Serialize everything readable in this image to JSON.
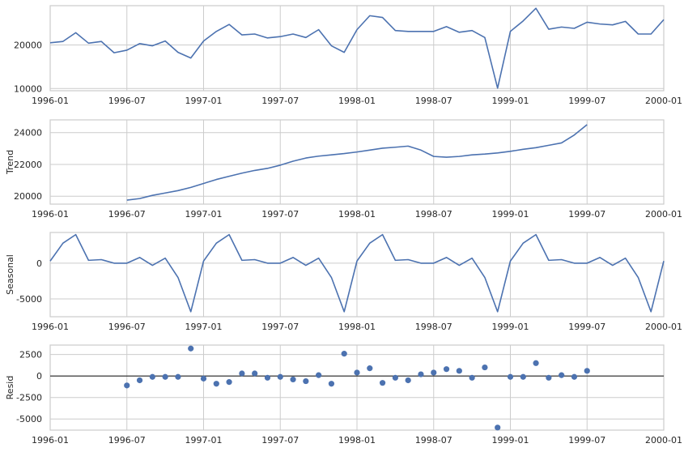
{
  "chart_data": [
    {
      "type": "line",
      "panel": "observed",
      "ylabel": "",
      "ylim": [
        9500,
        29000
      ],
      "yticks": [
        10000,
        20000
      ],
      "x_start": "1996-01",
      "x_freq": "monthly",
      "xticks": [
        "1996-01",
        "1996-07",
        "1997-01",
        "1997-07",
        "1998-01",
        "1998-07",
        "1999-01",
        "1999-07",
        "2000-01"
      ],
      "grid": true,
      "color": "#4c72b0",
      "series": [
        {
          "values": [
            20500,
            20800,
            22800,
            20400,
            20800,
            18200,
            18800,
            20300,
            19800,
            20900,
            18300,
            17000,
            20900,
            23100,
            24700,
            22300,
            22500,
            21600,
            21900,
            22500,
            21700,
            23500,
            19800,
            18300,
            23500,
            26700,
            26300,
            23300,
            23100,
            23100,
            23100,
            24200,
            22900,
            23300,
            21700,
            10100,
            23100,
            25500,
            28400,
            23600,
            24100,
            23800,
            25200,
            24800,
            24600,
            25400,
            22500,
            22500,
            25800
          ]
        }
      ]
    },
    {
      "type": "line",
      "panel": "trend",
      "ylabel": "Trend",
      "ylim": [
        19500,
        24800
      ],
      "yticks": [
        20000,
        22000,
        24000
      ],
      "x_start": "1996-01",
      "x_freq": "monthly",
      "xticks": [
        "1996-01",
        "1996-07",
        "1997-01",
        "1997-07",
        "1998-01",
        "1998-07",
        "1999-01",
        "1999-07",
        "2000-01"
      ],
      "grid": true,
      "color": "#4c72b0",
      "series": [
        {
          "values": [
            null,
            null,
            null,
            null,
            null,
            null,
            19750,
            19850,
            20050,
            20200,
            20350,
            20550,
            20800,
            21050,
            21250,
            21450,
            21620,
            21750,
            21950,
            22200,
            22400,
            22520,
            22600,
            22680,
            22780,
            22900,
            23020,
            23080,
            23150,
            22900,
            22500,
            22450,
            22500,
            22600,
            22650,
            22720,
            22820,
            22950,
            23050,
            23200,
            23350,
            23850,
            24500,
            null,
            null,
            null,
            null,
            null,
            null
          ]
        }
      ]
    },
    {
      "type": "line",
      "panel": "seasonal",
      "ylabel": "Seasonal",
      "ylim": [
        -7500,
        4300
      ],
      "yticks": [
        -5000,
        0
      ],
      "x_start": "1996-01",
      "x_freq": "monthly",
      "xticks": [
        "1996-01",
        "1996-07",
        "1997-01",
        "1997-07",
        "1998-01",
        "1998-07",
        "1999-01",
        "1999-07",
        "2000-01"
      ],
      "grid": true,
      "color": "#4c72b0",
      "series": [
        {
          "values": [
            300,
            2800,
            4000,
            400,
            500,
            0,
            0,
            800,
            -300,
            700,
            -2000,
            -6800,
            300,
            2800,
            4000,
            400,
            500,
            0,
            0,
            800,
            -300,
            700,
            -2000,
            -6800,
            300,
            2800,
            4000,
            400,
            500,
            0,
            0,
            800,
            -300,
            700,
            -2000,
            -6800,
            300,
            2800,
            4000,
            400,
            500,
            0,
            0,
            800,
            -300,
            700,
            -2000,
            -6800,
            300
          ]
        }
      ]
    },
    {
      "type": "scatter",
      "panel": "resid",
      "ylabel": "Resid",
      "ylim": [
        -6300,
        3600
      ],
      "yticks": [
        -5000,
        -2500,
        0,
        2500
      ],
      "zero_line": true,
      "x_start": "1996-01",
      "x_freq": "monthly",
      "xticks": [
        "1996-01",
        "1996-07",
        "1997-01",
        "1997-07",
        "1998-01",
        "1998-07",
        "1999-01",
        "1999-07",
        "2000-01"
      ],
      "grid": true,
      "color": "#4c72b0",
      "series": [
        {
          "values": [
            null,
            null,
            null,
            null,
            null,
            null,
            -1100,
            -500,
            -100,
            -100,
            -100,
            3200,
            -300,
            -900,
            -700,
            300,
            300,
            -200,
            -100,
            -400,
            -600,
            100,
            -900,
            2600,
            400,
            900,
            -800,
            -200,
            -500,
            200,
            400,
            800,
            600,
            -200,
            1000,
            -6000,
            -100,
            -100,
            1500,
            -200,
            100,
            -100,
            600,
            null,
            null,
            null,
            null,
            null,
            null
          ]
        }
      ]
    }
  ]
}
